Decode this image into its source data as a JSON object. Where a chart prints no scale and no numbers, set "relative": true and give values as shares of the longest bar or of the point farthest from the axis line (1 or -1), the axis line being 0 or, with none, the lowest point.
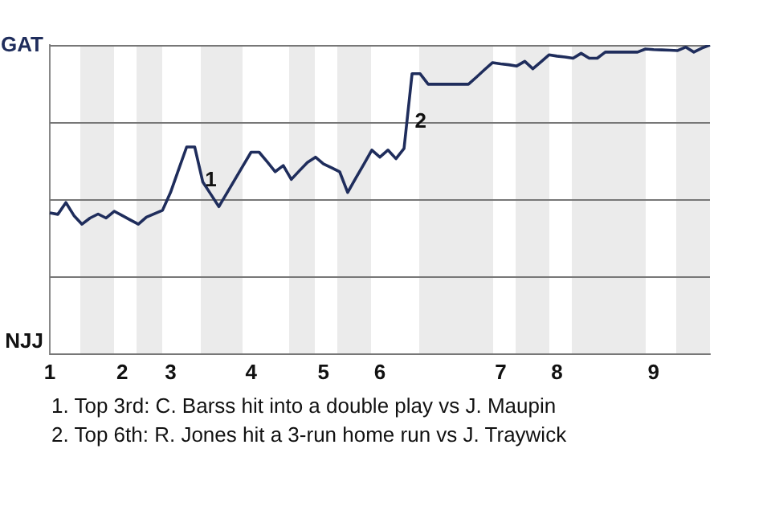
{
  "chart_data": {
    "type": "line",
    "relative": true,
    "categories": [
      "1",
      null,
      null,
      null,
      null,
      null,
      null,
      null,
      null,
      "2",
      null,
      null,
      null,
      null,
      null,
      "3",
      null,
      null,
      null,
      null,
      null,
      null,
      null,
      null,
      null,
      "4",
      null,
      null,
      null,
      null,
      null,
      null,
      null,
      null,
      "5",
      null,
      null,
      null,
      null,
      null,
      null,
      "6",
      null,
      null,
      null,
      null,
      null,
      null,
      null,
      null,
      null,
      null,
      null,
      null,
      null,
      null,
      "7",
      null,
      null,
      null,
      null,
      null,
      null,
      "8",
      null,
      null,
      null,
      null,
      null,
      null,
      null,
      null,
      null,
      null,
      null,
      "9",
      null,
      null,
      null,
      null,
      null,
      null,
      null
    ],
    "series": [
      {
        "color": "#1f2d5c",
        "values": [
          0.457,
          0.452,
          0.49,
          0.448,
          0.42,
          0.44,
          0.453,
          0.44,
          0.462,
          0.448,
          0.434,
          0.42,
          0.443,
          0.454,
          0.465,
          0.523,
          0.597,
          0.67,
          0.67,
          0.557,
          0.517,
          0.477,
          0.521,
          0.565,
          0.609,
          0.653,
          0.653,
          0.622,
          0.59,
          0.61,
          0.565,
          0.593,
          0.62,
          0.637,
          0.615,
          0.603,
          0.59,
          0.523,
          0.569,
          0.614,
          0.66,
          0.637,
          0.66,
          0.632,
          0.665,
          0.907,
          0.907,
          0.873,
          0.873,
          0.873,
          0.873,
          0.873,
          0.873,
          0.896,
          0.92,
          0.943,
          0.939,
          0.936,
          0.932,
          0.947,
          0.923,
          0.945,
          0.968,
          0.964,
          0.961,
          0.957,
          0.973,
          0.957,
          0.957,
          0.977,
          0.977,
          0.977,
          0.977,
          0.977,
          0.987,
          0.985,
          0.984,
          0.983,
          0.982,
          0.993,
          0.977,
          0.99,
          1
        ]
      }
    ],
    "grid": "y",
    "marker": "none",
    "annotations": [
      "GAT",
      "NJJ",
      "1",
      "2",
      "1. Top 3rd: C. Barss hit into a double play vs J. Maupin",
      "2. Top 6th: R. Jones hit a 3-run home run vs J. Traywick"
    ]
  }
}
